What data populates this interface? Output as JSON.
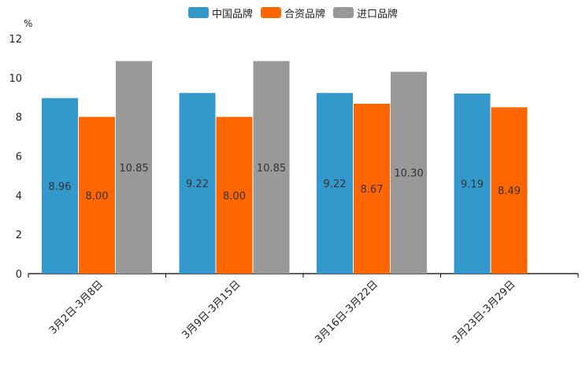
{
  "chart_data": {
    "type": "bar",
    "ylabel": "%",
    "ylim": [
      0,
      12
    ],
    "yticks": [
      0,
      2,
      4,
      6,
      8,
      10,
      12
    ],
    "categories": [
      "3月2日-3月8日",
      "3月9日-3月15日",
      "3月16日-3月22日",
      "3月23日-3月29日"
    ],
    "series": [
      {
        "name": "中国品牌",
        "color": "#3399cc",
        "values": [
          8.96,
          9.22,
          9.22,
          9.19
        ],
        "labels": [
          "8.96",
          "9.22",
          "9.22",
          "9.19"
        ]
      },
      {
        "name": "合资品牌",
        "color": "#ff6600",
        "values": [
          8.0,
          8.0,
          8.67,
          8.49
        ],
        "labels": [
          "8.00",
          "8.00",
          "8.67",
          "8.49"
        ]
      },
      {
        "name": "进口品牌",
        "color": "#999999",
        "values": [
          10.85,
          10.85,
          10.3,
          null
        ],
        "labels": [
          "10.85",
          "10.85",
          "10.30",
          null
        ]
      }
    ],
    "legend_position": "top-center"
  }
}
